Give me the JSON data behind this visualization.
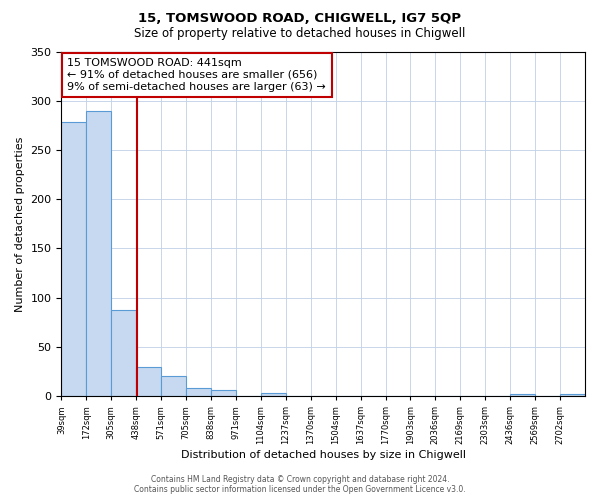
{
  "title": "15, TOMSWOOD ROAD, CHIGWELL, IG7 5QP",
  "subtitle": "Size of property relative to detached houses in Chigwell",
  "xlabel": "Distribution of detached houses by size in Chigwell",
  "ylabel": "Number of detached properties",
  "bin_edges": [
    39,
    172,
    305,
    438,
    571,
    705,
    838,
    971,
    1104,
    1237,
    1370,
    1504,
    1637,
    1770,
    1903,
    2036,
    2169,
    2303,
    2436,
    2569,
    2702,
    2835
  ],
  "bin_labels": [
    "39sqm",
    "172sqm",
    "305sqm",
    "438sqm",
    "571sqm",
    "705sqm",
    "838sqm",
    "971sqm",
    "1104sqm",
    "1237sqm",
    "1370sqm",
    "1504sqm",
    "1637sqm",
    "1770sqm",
    "1903sqm",
    "2036sqm",
    "2169sqm",
    "2303sqm",
    "2436sqm",
    "2569sqm",
    "2702sqm"
  ],
  "bar_heights": [
    278,
    290,
    88,
    30,
    20,
    8,
    6,
    0,
    3,
    0,
    0,
    0,
    0,
    0,
    0,
    0,
    0,
    0,
    2,
    0,
    2
  ],
  "bar_color": "#c6d9f0",
  "bar_edge_color": "#5b9bd5",
  "vline_x": 441,
  "vline_color": "#c00000",
  "annotation_title": "15 TOMSWOOD ROAD: 441sqm",
  "annotation_line1": "← 91% of detached houses are smaller (656)",
  "annotation_line2": "9% of semi-detached houses are larger (63) →",
  "annotation_box_color": "#ffffff",
  "annotation_box_edge": "#c00000",
  "ylim": [
    0,
    350
  ],
  "yticks": [
    0,
    50,
    100,
    150,
    200,
    250,
    300,
    350
  ],
  "footer_line1": "Contains HM Land Registry data © Crown copyright and database right 2024.",
  "footer_line2": "Contains public sector information licensed under the Open Government Licence v3.0.",
  "background_color": "#ffffff",
  "grid_color": "#c0d0e8",
  "title_fontsize": 9.5,
  "subtitle_fontsize": 8.5
}
